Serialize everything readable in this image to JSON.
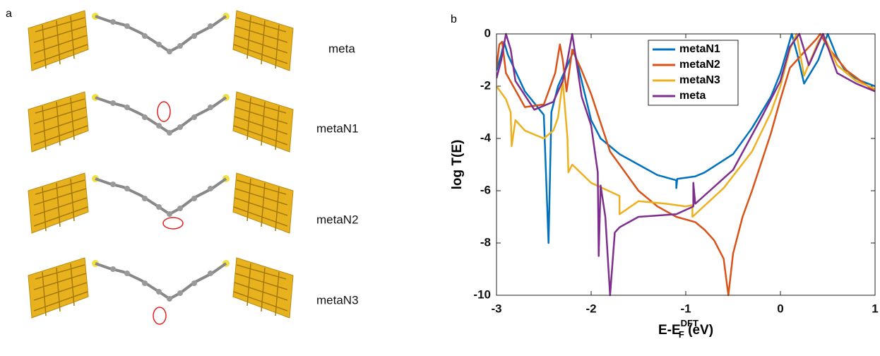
{
  "panel_a": {
    "label": "a",
    "molecules": [
      "meta",
      "metaN1",
      "metaN2",
      "metaN3"
    ]
  },
  "panel_b_label": "b",
  "chart_data": {
    "type": "line",
    "ylabel": "log T(E)",
    "xlabel": {
      "main": "E-E",
      "sub": "F",
      "sup": "DFT",
      "unit": " (eV)"
    },
    "xlim": [
      -3,
      1
    ],
    "xticks": [
      -3,
      -2,
      -1,
      0,
      1
    ],
    "ylim": [
      -10,
      0
    ],
    "yticks": [
      -10,
      -8,
      -6,
      -4,
      -2,
      0
    ],
    "legend": "top-right",
    "series": [
      {
        "name": "metaN1",
        "color": "#0072bd",
        "x": [
          -3,
          -2.95,
          -2.92,
          -2.88,
          -2.7,
          -2.5,
          -2.45,
          -2.42,
          -2.35,
          -2.25,
          -2.18,
          -2.1,
          -2.0,
          -1.9,
          -1.7,
          -1.5,
          -1.3,
          -1.1,
          -1.1,
          -1.09,
          -0.9,
          -0.8,
          -0.5,
          -0.3,
          -0.1,
          0,
          0.08,
          0.12,
          0.18,
          0.25,
          0.4,
          0.5,
          0.6,
          0.7,
          0.85,
          1
        ],
        "values": [
          -1.4,
          -0.8,
          -0.3,
          -0.8,
          -2.2,
          -3.1,
          -8.0,
          -3.0,
          -2.0,
          -1.2,
          -0.6,
          -1.8,
          -3.3,
          -4.0,
          -4.6,
          -5.0,
          -5.4,
          -5.6,
          -5.9,
          -5.55,
          -5.45,
          -5.3,
          -4.6,
          -3.6,
          -2.4,
          -1.5,
          -0.5,
          0,
          -0.8,
          -1.9,
          -1.0,
          0,
          -0.9,
          -1.5,
          -1.8,
          -2.0
        ]
      },
      {
        "name": "metaN2",
        "color": "#d95319",
        "x": [
          -3,
          -2.97,
          -2.94,
          -2.9,
          -2.7,
          -2.5,
          -2.38,
          -2.33,
          -2.3,
          -2.26,
          -2.2,
          -2.1,
          -2.0,
          -1.8,
          -1.5,
          -1.3,
          -1.1,
          -0.9,
          -0.8,
          -0.7,
          -0.6,
          -0.55,
          -0.5,
          -0.4,
          -0.3,
          -0.1,
          0,
          0.1,
          0.25,
          0.38,
          0.42,
          0.5,
          0.7,
          1
        ],
        "values": [
          -1.3,
          -0.4,
          -0.3,
          -1.5,
          -2.8,
          -2.7,
          -1.5,
          -0.4,
          -1.0,
          -2.2,
          -0.6,
          -1.4,
          -2.3,
          -4.5,
          -6.0,
          -6.6,
          -7.0,
          -7.2,
          -7.5,
          -7.9,
          -8.6,
          -10,
          -8.4,
          -7.0,
          -6.0,
          -3.8,
          -2.5,
          -1.3,
          -0.7,
          -0.2,
          0,
          -0.5,
          -1.4,
          -2.2
        ]
      },
      {
        "name": "metaN3",
        "color": "#edb120",
        "x": [
          -3,
          -2.9,
          -2.85,
          -2.84,
          -2.8,
          -2.7,
          -2.5,
          -2.4,
          -2.35,
          -2.3,
          -2.25,
          -2.24,
          -2.2,
          -2.0,
          -1.7,
          -1.7,
          -1.5,
          -1.2,
          -1.0,
          -0.93,
          -0.93,
          -0.6,
          -0.3,
          -0.1,
          0,
          0.1,
          0.17,
          0.25,
          0.4,
          0.45,
          0.6,
          0.8,
          1
        ],
        "values": [
          -2.0,
          -2.5,
          -3.0,
          -4.3,
          -3.3,
          -3.7,
          -4.0,
          -3.7,
          -3.2,
          -1.8,
          -4.0,
          -5.3,
          -5.0,
          -5.7,
          -6.2,
          -6.9,
          -6.4,
          -6.5,
          -6.6,
          -6.55,
          -7.0,
          -5.9,
          -4.5,
          -3.0,
          -2.0,
          -0.6,
          0,
          -1.6,
          -0.3,
          0,
          -1.2,
          -1.8,
          -2.1
        ]
      },
      {
        "name": "meta",
        "color": "#7e2f8e",
        "x": [
          -3,
          -2.95,
          -2.9,
          -2.85,
          -2.8,
          -2.6,
          -2.4,
          -2.3,
          -2.25,
          -2.2,
          -2.15,
          -2.1,
          -2.0,
          -1.93,
          -1.92,
          -1.9,
          -1.85,
          -1.8,
          -1.75,
          -1.7,
          -1.5,
          -1.3,
          -1.1,
          -0.92,
          -0.92,
          -0.9,
          -0.5,
          -0.2,
          0,
          0.1,
          0.2,
          0.3,
          0.45,
          0.6,
          0.8,
          1
        ],
        "values": [
          -1.7,
          -1.0,
          0,
          -0.6,
          -1.8,
          -2.9,
          -2.6,
          -1.8,
          -1.0,
          0,
          -1.2,
          -2.4,
          -3.5,
          -5.3,
          -8.5,
          -5.8,
          -7.0,
          -10,
          -7.6,
          -7.4,
          -7.0,
          -6.95,
          -6.9,
          -6.6,
          -5.7,
          -6.5,
          -5.2,
          -3.2,
          -1.8,
          -0.5,
          0,
          -1.2,
          0,
          -1.5,
          -1.9,
          -2.2
        ]
      }
    ]
  }
}
